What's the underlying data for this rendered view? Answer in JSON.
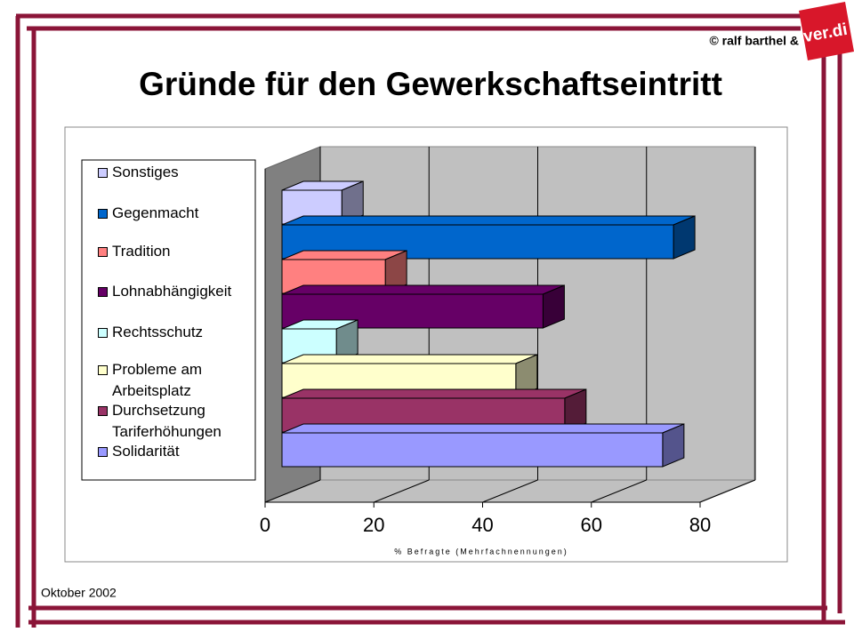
{
  "title": "© ralf barthel &",
  "logo": "ver.di",
  "footer": "Oktober 2002",
  "chart_data": {
    "type": "bar3d",
    "orientation": "horizontal",
    "title": "Gründe für den Gewerkschaftseintritt",
    "x_label": "% Befragte (Mehrfachnennungen)",
    "categories": [
      "Sonstiges",
      "Gegenmacht",
      "Tradition",
      "Lohnabhängigkeit",
      "Rechtsschutz",
      "Probleme am Arbeitsplatz",
      "Durchsetzung Tariferhöhungen",
      "Solidarität"
    ],
    "values": [
      11,
      72,
      19,
      48,
      10,
      43,
      52,
      70
    ],
    "colors": [
      "#ccccff",
      "#0066cc",
      "#ff8080",
      "#660066",
      "#ccffff",
      "#ffffcc",
      "#993366",
      "#9999ff"
    ],
    "xlim": [
      0,
      80
    ],
    "xticks": [
      0,
      20,
      40,
      60,
      80
    ],
    "grid": true,
    "legend": "left"
  }
}
